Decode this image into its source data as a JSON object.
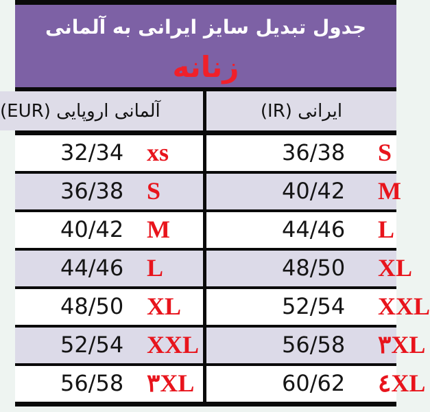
{
  "title": "جدول تبدیل سایز ایرانی به آلمانی",
  "subtitle": "زنانه",
  "columns": {
    "left": "آلمانی اروپایی (EUR)",
    "right": "ایرانی (IR)"
  },
  "colors": {
    "header": "#7d61a5",
    "accent": "#e8141c",
    "row_alt": "#dcdae8"
  },
  "rows": [
    {
      "eur": "32/34",
      "eur_size": "xs",
      "ir": "36/38",
      "ir_size": "S"
    },
    {
      "eur": "36/38",
      "eur_size": "S",
      "ir": "40/42",
      "ir_size": "M"
    },
    {
      "eur": "40/42",
      "eur_size": "M",
      "ir": "44/46",
      "ir_size": "L"
    },
    {
      "eur": "44/46",
      "eur_size": "L",
      "ir": "48/50",
      "ir_size": "XL"
    },
    {
      "eur": "48/50",
      "eur_size": "XL",
      "ir": "52/54",
      "ir_size": "XXL"
    },
    {
      "eur": "52/54",
      "eur_size": "XXL",
      "ir": "56/58",
      "ir_size": "۳XL"
    },
    {
      "eur": "56/58",
      "eur_size": "۳XL",
      "ir": "60/62",
      "ir_size": "٤XL"
    }
  ]
}
